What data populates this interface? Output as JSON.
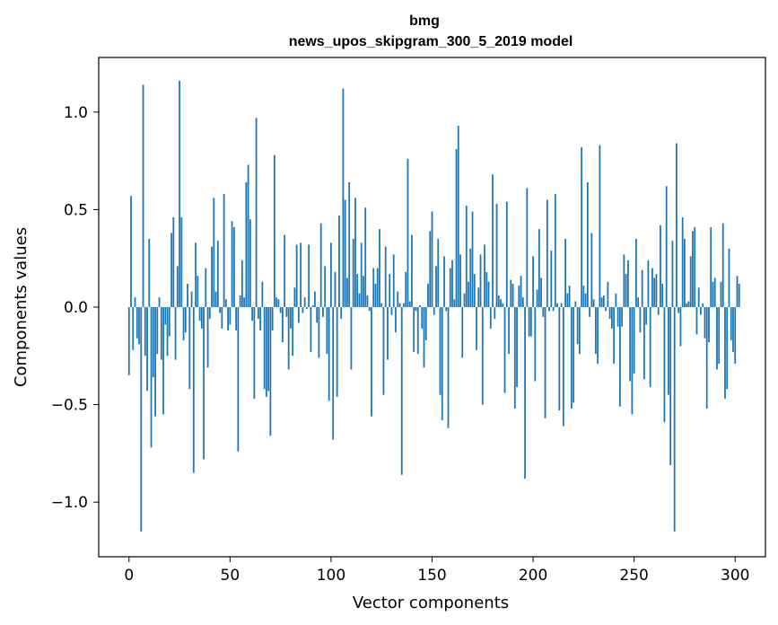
{
  "chart_data": {
    "type": "bar",
    "title": "bmg",
    "subtitle": "news_upos_skipgram_300_5_2019 model",
    "xlabel": "Vector components",
    "ylabel": "Components values",
    "xlim": [
      -15,
      315
    ],
    "ylim": [
      -1.28,
      1.28
    ],
    "xticks": [
      0,
      50,
      100,
      150,
      200,
      250,
      300
    ],
    "xtick_labels": [
      "0",
      "50",
      "100",
      "150",
      "200",
      "250",
      "300"
    ],
    "yticks": [
      -1.0,
      -0.5,
      0.0,
      0.5,
      1.0
    ],
    "ytick_labels": [
      "−1.0",
      "−0.5",
      "0.0",
      "0.5",
      "1.0"
    ],
    "grid": false,
    "bar_color": "#1f77b4",
    "x_start": 0,
    "values": [
      -0.35,
      0.57,
      -0.22,
      0.05,
      -0.16,
      -0.19,
      -1.15,
      1.14,
      -0.25,
      -0.43,
      0.35,
      -0.72,
      -0.36,
      -0.56,
      -0.24,
      0.05,
      -0.27,
      -0.55,
      -0.09,
      -0.25,
      -0.15,
      0.38,
      0.46,
      -0.27,
      0.21,
      1.16,
      0.46,
      -0.17,
      -0.13,
      0.12,
      -0.42,
      0.08,
      -0.85,
      0.33,
      0.16,
      -0.07,
      -0.11,
      -0.78,
      0.2,
      -0.31,
      -0.06,
      0.31,
      0.56,
      0.08,
      0.34,
      -0.03,
      -0.11,
      0.58,
      0.04,
      -0.12,
      -0.09,
      0.44,
      0.41,
      -0.12,
      -0.74,
      0.06,
      0.24,
      0.05,
      0.64,
      0.73,
      0.45,
      -0.07,
      -0.47,
      0.97,
      -0.06,
      -0.12,
      0.13,
      -0.42,
      -0.46,
      -0.43,
      -0.66,
      -0.12,
      0.78,
      0.05,
      0.04,
      -0.03,
      -0.18,
      0.37,
      -0.05,
      -0.32,
      -0.11,
      -0.25,
      0.1,
      0.32,
      -0.08,
      0.33,
      -0.03,
      0.05,
      -0.01,
      0.32,
      -0.23,
      0.01,
      0.08,
      -0.08,
      -0.26,
      0.43,
      -0.05,
      0.21,
      -0.24,
      -0.48,
      0.33,
      -0.68,
      0.18,
      -0.46,
      0.47,
      -0.06,
      1.12,
      0.55,
      0.15,
      0.64,
      -0.32,
      0.35,
      0.56,
      0.17,
      0.07,
      0.33,
      0.16,
      0.51,
      0.06,
      -0.02,
      -0.56,
      0.2,
      0.12,
      0.2,
      0.4,
      0.02,
      -0.45,
      0.31,
      -0.27,
      0.17,
      -0.04,
      0.27,
      -0.13,
      0.08,
      0.02,
      -0.86,
      0.02,
      0.18,
      0.76,
      0.03,
      0.37,
      -0.23,
      -0.02,
      -0.24,
      0.01,
      -0.11,
      -0.31,
      -0.17,
      0.12,
      0.39,
      0.49,
      -0.04,
      0.21,
      0.35,
      -0.45,
      -0.58,
      0.26,
      -0.02,
      -0.62,
      0.2,
      0.24,
      0.04,
      0.81,
      0.93,
      0.27,
      -0.26,
      0.07,
      0.52,
      0.13,
      0.3,
      0.49,
      0.17,
      -0.22,
      0.1,
      0.27,
      -0.5,
      0.32,
      0.18,
      0.13,
      -0.11,
      0.68,
      -0.06,
      0.53,
      0.06,
      0.04,
      0.02,
      -0.44,
      0.54,
      -0.24,
      0.14,
      0.12,
      -0.52,
      -0.41,
      0.11,
      0.16,
      0.05,
      -0.88,
      0.61,
      -0.15,
      -0.15,
      0.26,
      -0.38,
      0.09,
      0.4,
      0.15,
      -0.05,
      -0.57,
      0.55,
      -0.02,
      0.29,
      -0.02,
      0.58,
      0.02,
      -0.53,
      0.02,
      -0.61,
      0.35,
      0.07,
      0.11,
      -0.52,
      -0.49,
      0.03,
      -0.19,
      -0.24,
      0.82,
      0.11,
      0.07,
      0.64,
      -0.05,
      0.38,
      0.04,
      -0.24,
      -0.29,
      0.83,
      0.05,
      0.06,
      -0.02,
      0.13,
      -0.06,
      -0.11,
      -0.29,
      0.07,
      -0.1,
      -0.51,
      -0.1,
      0.27,
      0.17,
      0.24,
      -0.38,
      -0.55,
      -0.34,
      0.35,
      0.05,
      -0.13,
      0.19,
      -0.37,
      -0.09,
      0.24,
      -0.41,
      0.2,
      0.15,
      0.17,
      -0.04,
      0.42,
      0.12,
      -0.59,
      0.62,
      -0.45,
      -0.81,
      0.34,
      -1.15,
      0.84,
      -0.03,
      -0.2,
      0.46,
      0.35,
      0.02,
      0.03,
      0.26,
      0.39,
      0.41,
      -0.14,
      0.1,
      -0.04,
      0.02,
      -0.16,
      -0.52,
      -0.18,
      0.41,
      0.13,
      0.15,
      -0.32,
      -0.29,
      0.13,
      0.43,
      -0.47,
      -0.42,
      0.3,
      -0.17,
      -0.23,
      -0.29,
      0.16,
      0.12
    ]
  }
}
